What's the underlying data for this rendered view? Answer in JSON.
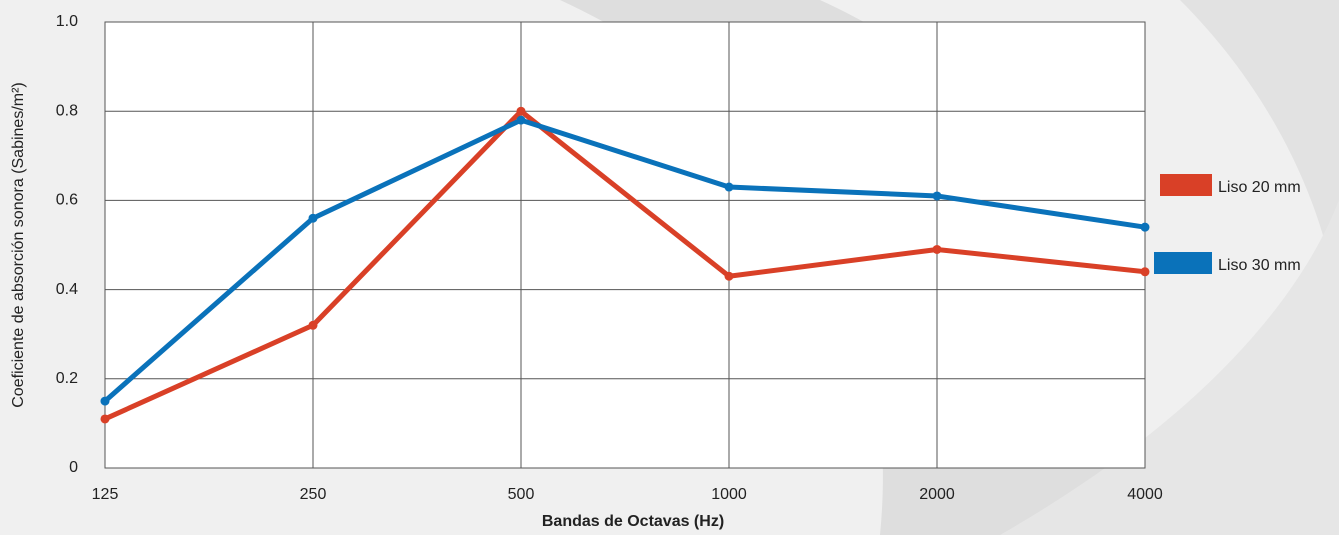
{
  "chart_data": {
    "type": "line",
    "x_label": "Bandas de Octavas (Hz)",
    "y_label": "Coeficiente de absorción sonora (Sabines/m²)",
    "categories": [
      "125",
      "250",
      "500",
      "1000",
      "2000",
      "4000"
    ],
    "series": [
      {
        "name": "Liso 20 mm",
        "color": "#d94027",
        "values": [
          0.11,
          0.32,
          0.8,
          0.43,
          0.49,
          0.44
        ]
      },
      {
        "name": "Liso 30 mm",
        "color": "#0a72ba",
        "values": [
          0.15,
          0.56,
          0.78,
          0.63,
          0.61,
          0.54
        ]
      }
    ],
    "ylim": [
      0,
      1
    ],
    "yticks": [
      0,
      0.2,
      0.4,
      0.6,
      0.8,
      {
        "value": 1,
        "label": "1.0"
      }
    ],
    "grid": true
  }
}
